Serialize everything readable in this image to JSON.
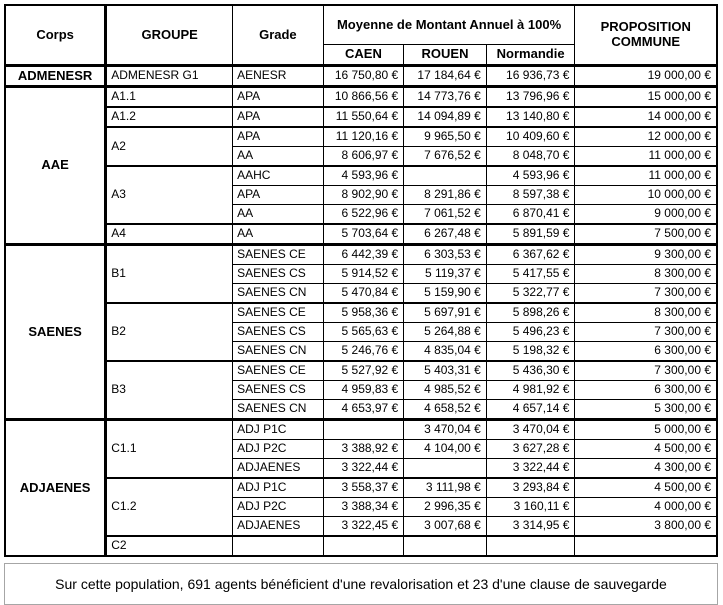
{
  "header": {
    "corps": "Corps",
    "groupe": "GROUPE",
    "grade": "Grade",
    "moyenne": "Moyenne de Montant Annuel à 100%",
    "caen": "CAEN",
    "rouen": "ROUEN",
    "normandie": "Normandie",
    "proposition": "PROPOSITION COMMUNE"
  },
  "groups": [
    {
      "corps": "ADMENESR",
      "sections": [
        {
          "groupe": "ADMENESR G1",
          "rows": [
            {
              "grade": "AENESR",
              "caen": "16 750,80 €",
              "rouen": "17 184,64 €",
              "normandie": "16 936,73 €",
              "proposition": "19 000,00 €"
            }
          ]
        }
      ]
    },
    {
      "corps": "AAE",
      "sections": [
        {
          "groupe": "A1.1",
          "rows": [
            {
              "grade": "APA",
              "caen": "10 866,56 €",
              "rouen": "14 773,76 €",
              "normandie": "13 796,96 €",
              "proposition": "15 000,00 €"
            }
          ]
        },
        {
          "groupe": "A1.2",
          "rows": [
            {
              "grade": "APA",
              "caen": "11 550,64 €",
              "rouen": "14 094,89 €",
              "normandie": "13 140,80 €",
              "proposition": "14 000,00 €"
            }
          ]
        },
        {
          "groupe": "A2",
          "rows": [
            {
              "grade": "APA",
              "caen": "11 120,16 €",
              "rouen": "9 965,50 €",
              "normandie": "10 409,60 €",
              "proposition": "12 000,00 €"
            },
            {
              "grade": "AA",
              "caen": "8 606,97 €",
              "rouen": "7 676,52 €",
              "normandie": "8 048,70 €",
              "proposition": "11 000,00 €"
            }
          ]
        },
        {
          "groupe": "A3",
          "rows": [
            {
              "grade": "AAHC",
              "caen": "4 593,96 €",
              "rouen": "",
              "normandie": "4 593,96 €",
              "proposition": "11 000,00 €"
            },
            {
              "grade": "APA",
              "caen": "8 902,90 €",
              "rouen": "8 291,86 €",
              "normandie": "8 597,38 €",
              "proposition": "10 000,00 €"
            },
            {
              "grade": "AA",
              "caen": "6 522,96 €",
              "rouen": "7 061,52 €",
              "normandie": "6 870,41 €",
              "proposition": "9 000,00 €"
            }
          ]
        },
        {
          "groupe": "A4",
          "rows": [
            {
              "grade": "AA",
              "caen": "5 703,64 €",
              "rouen": "6 267,48 €",
              "normandie": "5 891,59 €",
              "proposition": "7 500,00 €"
            }
          ]
        }
      ]
    },
    {
      "corps": "SAENES",
      "sections": [
        {
          "groupe": "B1",
          "rows": [
            {
              "grade": "SAENES CE",
              "caen": "6 442,39 €",
              "rouen": "6 303,53 €",
              "normandie": "6 367,62 €",
              "proposition": "9 300,00 €"
            },
            {
              "grade": "SAENES CS",
              "caen": "5 914,52 €",
              "rouen": "5 119,37 €",
              "normandie": "5 417,55 €",
              "proposition": "8 300,00 €"
            },
            {
              "grade": "SAENES CN",
              "caen": "5 470,84 €",
              "rouen": "5 159,90 €",
              "normandie": "5 322,77 €",
              "proposition": "7 300,00 €"
            }
          ]
        },
        {
          "groupe": "B2",
          "rows": [
            {
              "grade": "SAENES CE",
              "caen": "5 958,36 €",
              "rouen": "5 697,91 €",
              "normandie": "5 898,26 €",
              "proposition": "8 300,00 €"
            },
            {
              "grade": "SAENES CS",
              "caen": "5 565,63 €",
              "rouen": "5 264,88 €",
              "normandie": "5 496,23 €",
              "proposition": "7 300,00 €"
            },
            {
              "grade": "SAENES CN",
              "caen": "5 246,76 €",
              "rouen": "4 835,04 €",
              "normandie": "5 198,32 €",
              "proposition": "6 300,00 €"
            }
          ]
        },
        {
          "groupe": "B3",
          "rows": [
            {
              "grade": "SAENES CE",
              "caen": "5 527,92 €",
              "rouen": "5 403,31 €",
              "normandie": "5 436,30 €",
              "proposition": "7 300,00 €"
            },
            {
              "grade": "SAENES CS",
              "caen": "4 959,83 €",
              "rouen": "4 985,52 €",
              "normandie": "4 981,92 €",
              "proposition": "6 300,00 €"
            },
            {
              "grade": "SAENES CN",
              "caen": "4 653,97 €",
              "rouen": "4 658,52 €",
              "normandie": "4 657,14 €",
              "proposition": "5 300,00 €"
            }
          ]
        }
      ]
    },
    {
      "corps": "ADJAENES",
      "sections": [
        {
          "groupe": "C1.1",
          "rows": [
            {
              "grade": "ADJ P1C",
              "caen": "",
              "rouen": "3 470,04 €",
              "normandie": "3 470,04 €",
              "proposition": "5 000,00 €"
            },
            {
              "grade": "ADJ P2C",
              "caen": "3 388,92 €",
              "rouen": "4 104,00 €",
              "normandie": "3 627,28 €",
              "proposition": "4 500,00 €"
            },
            {
              "grade": "ADJAENES",
              "caen": "3 322,44 €",
              "rouen": "",
              "normandie": "3 322,44 €",
              "proposition": "4 300,00 €"
            }
          ]
        },
        {
          "groupe": "C1.2",
          "rows": [
            {
              "grade": "ADJ P1C",
              "caen": "3 558,37 €",
              "rouen": "3 111,98 €",
              "normandie": "3 293,84 €",
              "proposition": "4 500,00 €"
            },
            {
              "grade": "ADJ P2C",
              "caen": "3 388,34 €",
              "rouen": "2 996,35 €",
              "normandie": "3 160,11 €",
              "proposition": "4 000,00 €"
            },
            {
              "grade": "ADJAENES",
              "caen": "3 322,45 €",
              "rouen": "3 007,68 €",
              "normandie": "3 314,95 €",
              "proposition": "3 800,00 €"
            }
          ]
        },
        {
          "groupe": "C2",
          "rows": [
            {
              "grade": "",
              "caen": "",
              "rouen": "",
              "normandie": "",
              "proposition": ""
            }
          ]
        }
      ]
    }
  ],
  "footer": {
    "note": "Sur cette population, 691 agents bénéficient d'une revalorisation et 23 d'une clause de sauvegarde"
  }
}
